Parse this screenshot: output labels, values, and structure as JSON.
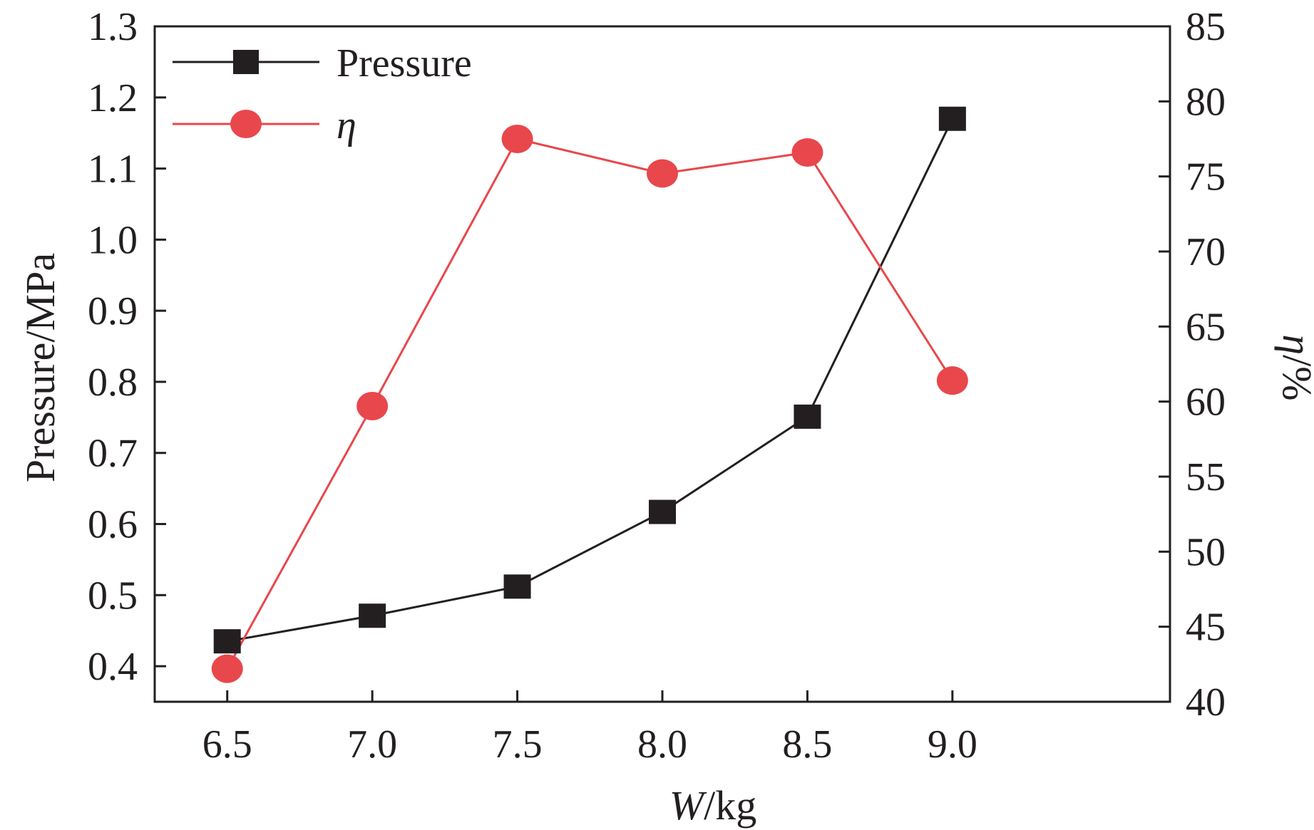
{
  "chart_data": {
    "type": "line",
    "x": [
      6.5,
      7.0,
      7.5,
      8.0,
      8.5,
      9.0
    ],
    "x_tick_labels": [
      "6.5",
      "7.0",
      "7.5",
      "8.0",
      "8.5",
      "9.0"
    ],
    "xlim": [
      6.25,
      9.75
    ],
    "xlabel": {
      "italic": "W",
      "rest": "/kg"
    },
    "y_left": {
      "label": "Pressure/MPa",
      "ylim": [
        0.35,
        1.3
      ],
      "ticks": [
        "0.4",
        "0.5",
        "0.6",
        "0.7",
        "0.8",
        "0.9",
        "1.0",
        "1.1",
        "1.2",
        "1.3"
      ]
    },
    "y_right": {
      "label": {
        "italic": "η",
        "rest": "/%"
      },
      "ylim": [
        40,
        85
      ],
      "ticks": [
        "40",
        "45",
        "50",
        "55",
        "60",
        "65",
        "70",
        "75",
        "80",
        "85"
      ]
    },
    "series": [
      {
        "name": "Pressure",
        "axis": "left",
        "marker": "square",
        "color": "#231f20",
        "values": [
          0.435,
          0.471,
          0.512,
          0.617,
          0.751,
          1.17
        ]
      },
      {
        "name": "η",
        "axis": "right",
        "marker": "circle",
        "color": "#e8474c",
        "values": [
          42.2,
          59.7,
          77.5,
          75.2,
          76.6,
          61.4
        ]
      }
    ],
    "legend": "top-left",
    "grid": false
  }
}
